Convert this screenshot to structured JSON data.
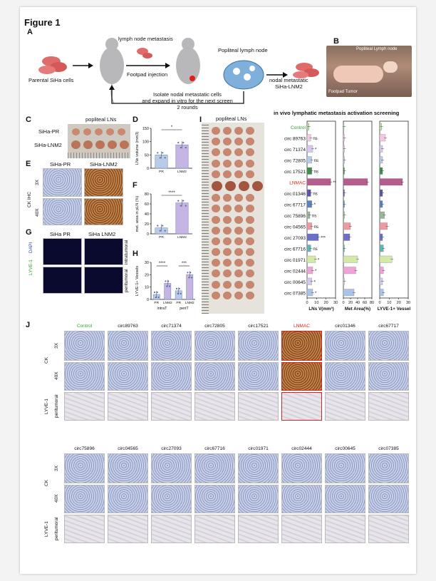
{
  "figure": {
    "title": "Figure 1",
    "panel_labels": [
      "A",
      "B",
      "C",
      "D",
      "E",
      "F",
      "G",
      "H",
      "I",
      "J"
    ]
  },
  "panelA": {
    "lymph_node_metastasis": "lymph node metastasis",
    "popliteal_lymph_node": "Popliteal lymph node",
    "parental": "Parental SiHa cells",
    "footpad": "Footpad injection",
    "nodal": "nodal metastatic",
    "nodal2": "SiHa-LNM2",
    "isolate1": "Isolate nodal metastatic cells",
    "isolate2": "and expand in vitro for the next screen",
    "isolate3": "2 rounds"
  },
  "panelB": {
    "popliteal": "Popliteal Lymph node",
    "footpad_tumor": "Footpad Tumor"
  },
  "panelC": {
    "title": "popliteal LNs",
    "row1": "SiHa-PR",
    "row2": "SiHa-LNM2"
  },
  "panelE": {
    "col1": "SiHa-PR",
    "col2": "SiHa-LNM2",
    "row1": "3X",
    "row2": "40X",
    "side": "CK IHC"
  },
  "panelG": {
    "col1": "SiHa PR",
    "col2": "SiHa LNM2",
    "row1": "intratumoral",
    "row2": "peritumoral",
    "side_lyve": "LYVE-1",
    "side_dapi": "DAPI"
  },
  "panelI": {
    "photo_title": "popliteal LNs",
    "screen_title": "in vivo lymphatic metastasis activation screening"
  },
  "panelJ": {
    "row1_labels": [
      "Control",
      "circ89763",
      "circ71374",
      "circ72805",
      "circ17521",
      "LNMAC",
      "circ01346",
      "circ67717"
    ],
    "row2_labels": [
      "circ75896",
      "circ04565",
      "circ27093",
      "circ67716",
      "circ01971",
      "circ02444",
      "circ00645",
      "circ07385"
    ],
    "mag1": "3X",
    "mag2": "40X",
    "ck": "CK",
    "lyve": "LYVE-1",
    "peri": "peritumoral"
  },
  "colors": {
    "purple": "#b79fd9",
    "blue_bar": "#b8cce8",
    "red": "#e0201b",
    "green": "#2aa52e"
  },
  "chart_data": [
    {
      "id": "D",
      "type": "bar",
      "categories": [
        "PR",
        "LNM2"
      ],
      "values": [
        50,
        88
      ],
      "ylabel": "LNs volume (mm3)",
      "ylim": [
        0,
        150
      ],
      "yticks": [
        0,
        50,
        100,
        150
      ],
      "significance": "*",
      "colors": [
        "#b8cce8",
        "#c6b4e3"
      ]
    },
    {
      "id": "F",
      "type": "bar",
      "categories": [
        "PR",
        "LNM2"
      ],
      "values": [
        12,
        62
      ],
      "ylabel": "met. area in pLN (%)",
      "ylim": [
        0,
        80
      ],
      "yticks": [
        0,
        20,
        40,
        60,
        80
      ],
      "significance": "****",
      "colors": [
        "#b8cce8",
        "#c6b4e3"
      ]
    },
    {
      "id": "H",
      "type": "bar",
      "categories": [
        "PR",
        "LNM2",
        "PR",
        "LNM2"
      ],
      "groups": [
        "intraT",
        "periT"
      ],
      "values": [
        4,
        13,
        7,
        20
      ],
      "ylabel": "LYVE-1+ Vessels",
      "ylim": [
        0,
        30
      ],
      "yticks": [
        0,
        10,
        20,
        30
      ],
      "significance": [
        "****",
        "***"
      ],
      "colors": [
        "#b8cce8",
        "#c6b4e3",
        "#b8cce8",
        "#c6b4e3"
      ]
    },
    {
      "id": "I",
      "type": "bar",
      "orientation": "horizontal",
      "title": "in vivo lymphatic metastasis activation screening",
      "categories": [
        "Control",
        "circ 89763",
        "circ 71374",
        "circ 72805",
        "circ 17521",
        "LNMAC",
        "circ 01346",
        "circ 67717",
        "circ 75896",
        "circ 04565",
        "circ 27093",
        "circ 67716",
        "circ 01971",
        "circ 02444",
        "circ 00645",
        "circ 07385"
      ],
      "significance": [
        "",
        "ns",
        "*",
        "ns",
        "ns",
        "**",
        "ns",
        "*",
        "ns",
        "ns",
        "***",
        "ns",
        "*",
        "*",
        "*",
        "*"
      ],
      "bar_colors": [
        "#b5dfa0",
        "#f3c7e6",
        "#d6c8ef",
        "#b8cce8",
        "#3e8f4e",
        "#b55d8e",
        "#5a55a6",
        "#5a83c2",
        "#9ab79a",
        "#ee9aa0",
        "#6c6ec7",
        "#5fb7b6",
        "#d4e9a7",
        "#efa3d7",
        "#d6c8ef",
        "#a9c4e8"
      ],
      "panels": [
        {
          "xlabel": "LNs V(mm³)",
          "xlim": [
            0,
            30
          ],
          "xticks": [
            0,
            10,
            20,
            30
          ],
          "values": [
            2,
            4,
            6,
            5,
            5,
            25,
            4,
            5,
            3,
            5,
            12,
            4,
            9,
            6,
            5,
            6
          ]
        },
        {
          "xlabel": "Met Area(%)",
          "xlim": [
            0,
            80
          ],
          "xticks": [
            0,
            20,
            40,
            60,
            80
          ],
          "values": [
            2,
            3,
            3,
            3,
            3,
            68,
            3,
            3,
            3,
            20,
            18,
            3,
            40,
            35,
            3,
            30
          ]
        },
        {
          "xlabel": "LYVE-1+ Vessel",
          "xlim": [
            0,
            30
          ],
          "xticks": [
            0,
            10,
            20,
            30
          ],
          "values": [
            2,
            6,
            3,
            3,
            3,
            24,
            3,
            3,
            5,
            8,
            3,
            4,
            13,
            4,
            3,
            4
          ]
        }
      ]
    }
  ]
}
